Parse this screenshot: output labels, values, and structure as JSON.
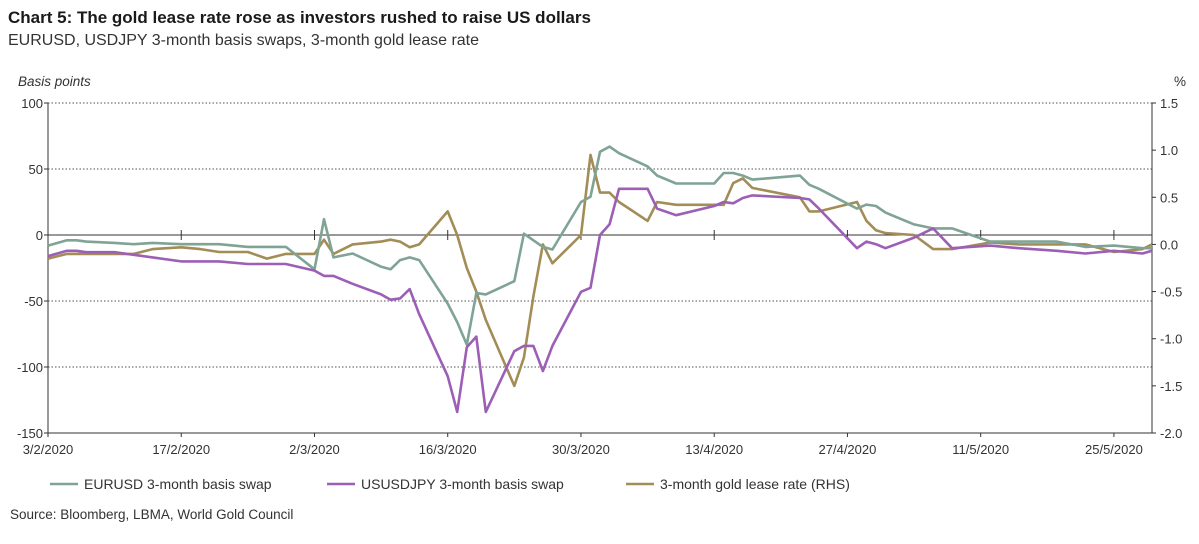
{
  "title": "Chart 5: The gold lease rate rose as investors rushed to raise US dollars",
  "subtitle": "EURUSD, USDJPY 3-month basis swaps, 3-month gold lease rate",
  "source": "Source: Bloomberg, LBMA, World Gold Council",
  "colors": {
    "eurusd": "#7fa395",
    "usdjpy": "#9c5fb5",
    "gold": "#a38d57"
  },
  "chart_data": {
    "type": "line",
    "ylabel": "Basis points",
    "y2label": "%",
    "ylim": [
      -150,
      100
    ],
    "y2lim": [
      -2.0,
      1.5
    ],
    "yticks": [
      "100",
      "50",
      "0",
      "-50",
      "-100",
      "-150"
    ],
    "y2ticks": [
      "1.5",
      "1.0",
      "0.5",
      "0.0",
      "-0.5",
      "-1.0",
      "-1.5",
      "-2.0"
    ],
    "xlim": [
      "2020-02-03",
      "2020-05-29"
    ],
    "xticks": [
      "3/2/2020",
      "17/2/2020",
      "2/3/2020",
      "16/3/2020",
      "30/3/2020",
      "13/4/2020",
      "27/4/2020",
      "11/5/2020",
      "25/5/2020"
    ],
    "legend_position": "bottom",
    "series": [
      {
        "name": "EURUSD 3-month basis swap",
        "axis": "left",
        "x": [
          "2020-02-03",
          "2020-02-05",
          "2020-02-06",
          "2020-02-07",
          "2020-02-10",
          "2020-02-12",
          "2020-02-14",
          "2020-02-17",
          "2020-02-19",
          "2020-02-21",
          "2020-02-24",
          "2020-02-26",
          "2020-02-28",
          "2020-03-02",
          "2020-03-03",
          "2020-03-04",
          "2020-03-06",
          "2020-03-09",
          "2020-03-10",
          "2020-03-11",
          "2020-03-12",
          "2020-03-13",
          "2020-03-16",
          "2020-03-17",
          "2020-03-18",
          "2020-03-19",
          "2020-03-20",
          "2020-03-23",
          "2020-03-24",
          "2020-03-25",
          "2020-03-26",
          "2020-03-27",
          "2020-03-30",
          "2020-03-31",
          "2020-04-01",
          "2020-04-02",
          "2020-04-03",
          "2020-04-06",
          "2020-04-07",
          "2020-04-09",
          "2020-04-13",
          "2020-04-14",
          "2020-04-15",
          "2020-04-16",
          "2020-04-17",
          "2020-04-22",
          "2020-04-23",
          "2020-04-24",
          "2020-04-28",
          "2020-04-29",
          "2020-04-30",
          "2020-05-01",
          "2020-05-04",
          "2020-05-06",
          "2020-05-08",
          "2020-05-12",
          "2020-05-15",
          "2020-05-19",
          "2020-05-22",
          "2020-05-25",
          "2020-05-28",
          "2020-05-29"
        ],
        "values": [
          -8,
          -4,
          -4,
          -5,
          -6,
          -7,
          -6,
          -7,
          -7,
          -7,
          -9,
          -9,
          -9,
          -26,
          12,
          -17,
          -14,
          -24,
          -26,
          -19,
          -17,
          -19,
          -52,
          -66,
          -83,
          -44,
          -45,
          -35,
          1,
          -4,
          -9,
          -11,
          25,
          29,
          63,
          67,
          62,
          52,
          45,
          39,
          39,
          47,
          47,
          45,
          42,
          45,
          38,
          35,
          20,
          23,
          22,
          17,
          8,
          5,
          5,
          -5,
          -5,
          -5,
          -9,
          -8,
          -10,
          -10
        ]
      },
      {
        "name": "USUSDJPY 3-month basis swap",
        "axis": "left",
        "x": [
          "2020-02-03",
          "2020-02-05",
          "2020-02-06",
          "2020-02-07",
          "2020-02-10",
          "2020-02-12",
          "2020-02-14",
          "2020-02-17",
          "2020-02-19",
          "2020-02-21",
          "2020-02-24",
          "2020-02-26",
          "2020-02-28",
          "2020-03-02",
          "2020-03-03",
          "2020-03-04",
          "2020-03-06",
          "2020-03-09",
          "2020-03-10",
          "2020-03-11",
          "2020-03-12",
          "2020-03-13",
          "2020-03-16",
          "2020-03-17",
          "2020-03-18",
          "2020-03-19",
          "2020-03-20",
          "2020-03-23",
          "2020-03-24",
          "2020-03-25",
          "2020-03-26",
          "2020-03-27",
          "2020-03-30",
          "2020-03-31",
          "2020-04-01",
          "2020-04-02",
          "2020-04-03",
          "2020-04-06",
          "2020-04-07",
          "2020-04-09",
          "2020-04-13",
          "2020-04-14",
          "2020-04-15",
          "2020-04-16",
          "2020-04-17",
          "2020-04-22",
          "2020-04-23",
          "2020-04-24",
          "2020-04-28",
          "2020-04-29",
          "2020-04-30",
          "2020-05-01",
          "2020-05-04",
          "2020-05-06",
          "2020-05-08",
          "2020-05-12",
          "2020-05-15",
          "2020-05-19",
          "2020-05-22",
          "2020-05-25",
          "2020-05-28",
          "2020-05-29"
        ],
        "values": [
          -16,
          -12,
          -12,
          -13,
          -13,
          -15,
          -17,
          -20,
          -20,
          -20,
          -22,
          -22,
          -22,
          -27,
          -31,
          -31,
          -37,
          -45,
          -49,
          -48,
          -41,
          -60,
          -107,
          -134,
          -85,
          -77,
          -134,
          -88,
          -84,
          -84,
          -103,
          -84,
          -43,
          -40,
          0,
          8,
          35,
          35,
          20,
          15,
          22,
          25,
          24,
          28,
          30,
          28,
          27,
          20,
          -10,
          -5,
          -7,
          -10,
          -2,
          5,
          -10,
          -8,
          -10,
          -12,
          -14,
          -12,
          -14,
          -12
        ]
      },
      {
        "name": "3-month gold lease rate (RHS)",
        "axis": "right",
        "x": [
          "2020-02-03",
          "2020-02-05",
          "2020-02-06",
          "2020-02-07",
          "2020-02-10",
          "2020-02-12",
          "2020-02-14",
          "2020-02-17",
          "2020-02-19",
          "2020-02-21",
          "2020-02-24",
          "2020-02-26",
          "2020-02-28",
          "2020-03-02",
          "2020-03-03",
          "2020-03-04",
          "2020-03-06",
          "2020-03-09",
          "2020-03-10",
          "2020-03-11",
          "2020-03-12",
          "2020-03-13",
          "2020-03-16",
          "2020-03-17",
          "2020-03-18",
          "2020-03-19",
          "2020-03-20",
          "2020-03-23",
          "2020-03-24",
          "2020-03-25",
          "2020-03-26",
          "2020-03-27",
          "2020-03-30",
          "2020-03-31",
          "2020-04-01",
          "2020-04-02",
          "2020-04-03",
          "2020-04-06",
          "2020-04-07",
          "2020-04-09",
          "2020-04-13",
          "2020-04-14",
          "2020-04-15",
          "2020-04-16",
          "2020-04-17",
          "2020-04-22",
          "2020-04-23",
          "2020-04-24",
          "2020-04-28",
          "2020-04-29",
          "2020-04-30",
          "2020-05-01",
          "2020-05-04",
          "2020-05-06",
          "2020-05-08",
          "2020-05-12",
          "2020-05-15",
          "2020-05-19",
          "2020-05-22",
          "2020-05-25",
          "2020-05-28",
          "2020-05-29"
        ],
        "values": [
          -0.15,
          -0.1,
          -0.1,
          -0.1,
          -0.1,
          -0.1,
          -0.05,
          -0.03,
          -0.05,
          -0.08,
          -0.08,
          -0.15,
          -0.1,
          -0.1,
          0.05,
          -0.1,
          0.0,
          0.03,
          0.05,
          0.03,
          -0.03,
          0.0,
          0.35,
          0.1,
          -0.25,
          -0.5,
          -0.8,
          -1.5,
          -1.2,
          -0.55,
          0.0,
          -0.2,
          0.1,
          0.95,
          0.55,
          0.55,
          0.45,
          0.25,
          0.45,
          0.42,
          0.42,
          0.42,
          0.65,
          0.7,
          0.6,
          0.5,
          0.35,
          0.35,
          0.45,
          0.25,
          0.15,
          0.12,
          0.1,
          -0.05,
          -0.05,
          0.02,
          0.0,
          0.0,
          0.0,
          -0.08,
          -0.05,
          0.0
        ]
      }
    ]
  }
}
